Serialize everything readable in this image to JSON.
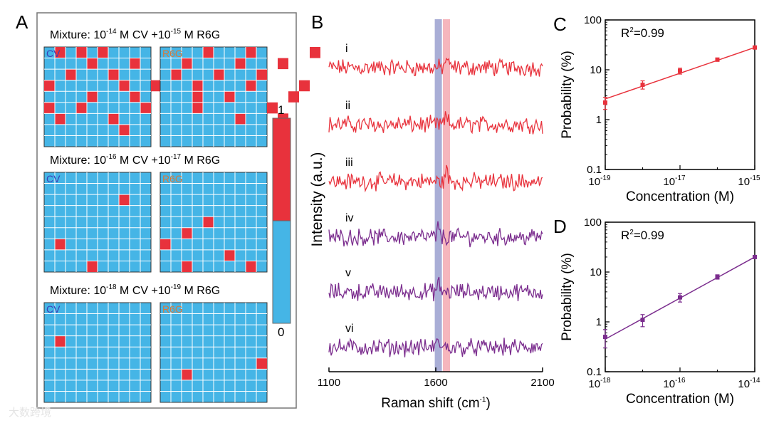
{
  "colors": {
    "red": "#e8323c",
    "purple": "#7b2d8e",
    "blue": "#45b5e6",
    "cv_text": "#3b3fb8",
    "r6g_text": "#d77a3a",
    "band_blue": "#9aa0cf",
    "band_red": "#f4a9b2"
  },
  "panelA": {
    "label": "A",
    "colorbar": {
      "max": "1",
      "min": "0"
    },
    "rows": [
      {
        "title_pre": "Mixture: 10",
        "cv_exp": "-14",
        "title_mid": " M CV +10",
        "r6g_exp": "-15",
        "title_post": " M R6G",
        "cv_label": "CV",
        "r6g_label": "R6G",
        "cv_hits": [
          [
            1,
            0
          ],
          [
            3,
            0
          ],
          [
            0,
            3
          ],
          [
            0,
            5
          ],
          [
            1,
            6
          ],
          [
            2,
            2
          ],
          [
            3,
            5
          ],
          [
            4,
            1
          ],
          [
            4,
            4
          ],
          [
            5,
            0
          ],
          [
            6,
            2
          ],
          [
            6,
            6
          ],
          [
            7,
            3
          ],
          [
            7,
            7
          ],
          [
            8,
            1
          ],
          [
            8,
            4
          ],
          [
            9,
            5
          ],
          [
            10,
            3
          ],
          [
            11,
            2
          ]
        ],
        "r6g_hits": [
          [
            1,
            2
          ],
          [
            2,
            1
          ],
          [
            3,
            3
          ],
          [
            3,
            4
          ],
          [
            3,
            5
          ],
          [
            4,
            0
          ],
          [
            5,
            2
          ],
          [
            6,
            4
          ],
          [
            7,
            1
          ],
          [
            7,
            6
          ],
          [
            8,
            0
          ],
          [
            8,
            3
          ],
          [
            9,
            2
          ],
          [
            10,
            5
          ],
          [
            11,
            1
          ],
          [
            11,
            6
          ],
          [
            12,
            4
          ],
          [
            13,
            3
          ],
          [
            14,
            0
          ]
        ]
      },
      {
        "title_pre": "Mixture: 10",
        "cv_exp": "-16",
        "title_mid": " M CV +10",
        "r6g_exp": "-17",
        "title_post": " M R6G",
        "cv_label": "CV",
        "r6g_label": "R6G",
        "cv_hits": [
          [
            7,
            2
          ],
          [
            1,
            6
          ],
          [
            4,
            8
          ]
        ],
        "r6g_hits": [
          [
            4,
            4
          ],
          [
            2,
            5
          ],
          [
            0,
            6
          ],
          [
            6,
            7
          ],
          [
            2,
            8
          ],
          [
            8,
            8
          ]
        ]
      },
      {
        "title_pre": "Mixture: 10",
        "cv_exp": "-18",
        "title_mid": " M CV +10",
        "r6g_exp": "-19",
        "title_post": " M R6G",
        "cv_label": "CV",
        "r6g_label": "R6G",
        "cv_hits": [
          [
            1,
            3
          ]
        ],
        "r6g_hits": [
          [
            9,
            5
          ],
          [
            2,
            6
          ]
        ]
      }
    ]
  },
  "panelB": {
    "label": "B",
    "xlabel_pre": "Raman shift (cm",
    "xlabel_sup": "-1",
    "xlabel_post": ")",
    "ylabel": "Intensity (a.u.)",
    "xticks": [
      "1100",
      "1600",
      "2100"
    ],
    "xrange": [
      1100,
      2100
    ],
    "band_blue_center": 1612,
    "band_red_center": 1650,
    "traces": [
      {
        "label": "i",
        "color": "red",
        "peaks": [
          {
            "x": 1650,
            "h": 1.6
          }
        ]
      },
      {
        "label": "ii",
        "color": "red",
        "peaks": [
          {
            "x": 1650,
            "h": 1.4
          }
        ]
      },
      {
        "label": "iii",
        "color": "red",
        "peaks": [
          {
            "x": 1650,
            "h": 1.9
          }
        ]
      },
      {
        "label": "iv",
        "color": "purple",
        "peaks": [
          {
            "x": 1612,
            "h": 1.5
          }
        ]
      },
      {
        "label": "v",
        "color": "purple",
        "peaks": [
          {
            "x": 1612,
            "h": 1.3
          }
        ]
      },
      {
        "label": "vi",
        "color": "purple",
        "peaks": [
          {
            "x": 1612,
            "h": 1.4
          }
        ]
      }
    ]
  },
  "chart_data": [
    {
      "type": "scatter",
      "panel": "C",
      "title": "",
      "annotation": "R²=0.99",
      "xlabel": "Concentration (M)",
      "ylabel": "Probability (%)",
      "xscale": "log",
      "yscale": "log",
      "xlim": [
        1e-19,
        1e-15
      ],
      "ylim": [
        0.1,
        100
      ],
      "xtick_base": "10",
      "xtick_exps": [
        "-19",
        "-17",
        "-15"
      ],
      "yticks": [
        "0.1",
        "1",
        "10",
        "100"
      ],
      "color": "red",
      "x": [
        1e-19,
        1e-18,
        1e-17,
        1e-16,
        1e-15
      ],
      "y": [
        2.2,
        5,
        9.5,
        16,
        28
      ],
      "err_low": [
        1.6,
        4.1,
        8.2,
        14.8,
        26.8
      ],
      "err_high": [
        2.8,
        6,
        10.8,
        17.2,
        29.2
      ],
      "fit_start": [
        1e-19,
        2.6
      ],
      "fit_end": [
        1e-15,
        28
      ]
    },
    {
      "type": "scatter",
      "panel": "D",
      "title": "",
      "annotation": "R²=0.99",
      "xlabel": "Concentration (M)",
      "ylabel": "Probability (%)",
      "xscale": "log",
      "yscale": "log",
      "xlim": [
        1e-18,
        1e-14
      ],
      "ylim": [
        0.1,
        100
      ],
      "xtick_base": "10",
      "xtick_exps": [
        "-18",
        "-16",
        "-14"
      ],
      "yticks": [
        "0.1",
        "1",
        "10",
        "100"
      ],
      "color": "purple",
      "x": [
        1e-18,
        1e-17,
        1e-16,
        1e-15,
        1e-14
      ],
      "y": [
        0.5,
        1.1,
        3.1,
        8,
        20
      ],
      "err_low": [
        0.3,
        0.8,
        2.5,
        7.2,
        18.8
      ],
      "err_high": [
        0.7,
        1.4,
        3.7,
        8.8,
        21.2
      ],
      "fit_start": [
        1e-18,
        0.45
      ],
      "fit_end": [
        1e-14,
        20
      ]
    }
  ],
  "watermark": "大数跨境"
}
